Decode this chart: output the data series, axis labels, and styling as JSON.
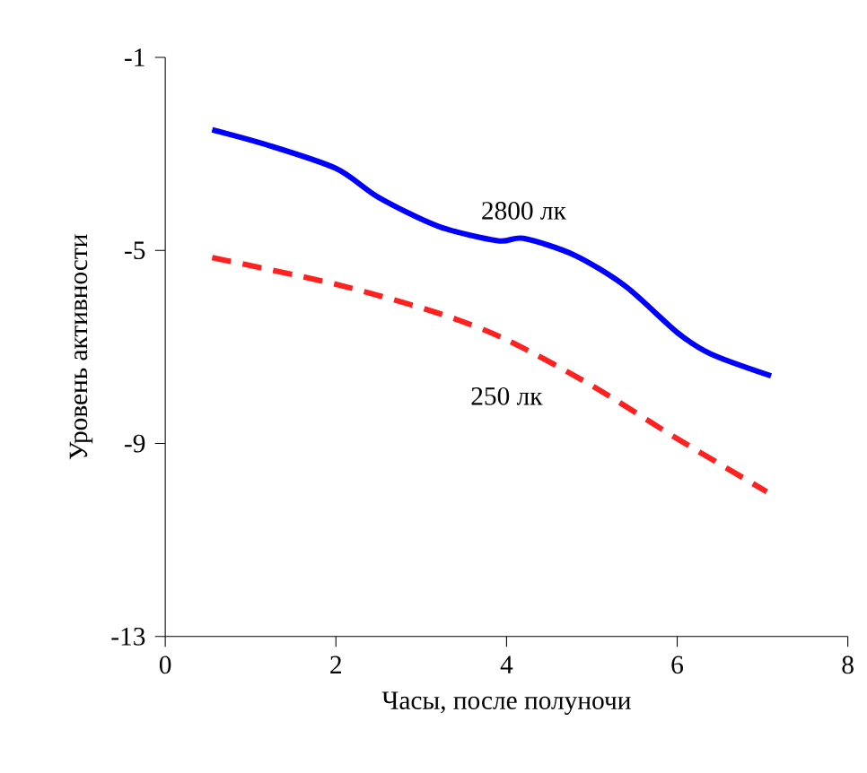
{
  "chart_data": {
    "type": "line",
    "xlabel": "Часы, после полуночи",
    "ylabel": "Уровень активности",
    "xlim": [
      0,
      8
    ],
    "ylim": [
      -13,
      -1
    ],
    "xticks": [
      0,
      2,
      4,
      6,
      8
    ],
    "yticks": [
      -13,
      -9,
      -5,
      -1
    ],
    "grid": false,
    "legend": false,
    "marker": "none",
    "series": [
      {
        "name": "2800 лк",
        "color": "#0000ff",
        "line_style": "solid",
        "x": [
          0.55,
          1.17,
          2,
          2.5,
          3.2,
          3.9,
          4.2,
          4.8,
          5.4,
          6.0,
          6.4,
          7.1
        ],
        "values": [
          -2.5,
          -2.8,
          -3.3,
          -3.9,
          -4.5,
          -4.8,
          -4.75,
          -5.1,
          -5.75,
          -6.7,
          -7.15,
          -7.6
        ]
      },
      {
        "name": "250 лк",
        "color": "#ff2020",
        "line_style": "dashed",
        "x": [
          0.55,
          2,
          3.2,
          4,
          5,
          6,
          7.05
        ],
        "values": [
          -5.15,
          -5.7,
          -6.3,
          -6.85,
          -7.8,
          -8.9,
          -10.0
        ]
      }
    ]
  }
}
